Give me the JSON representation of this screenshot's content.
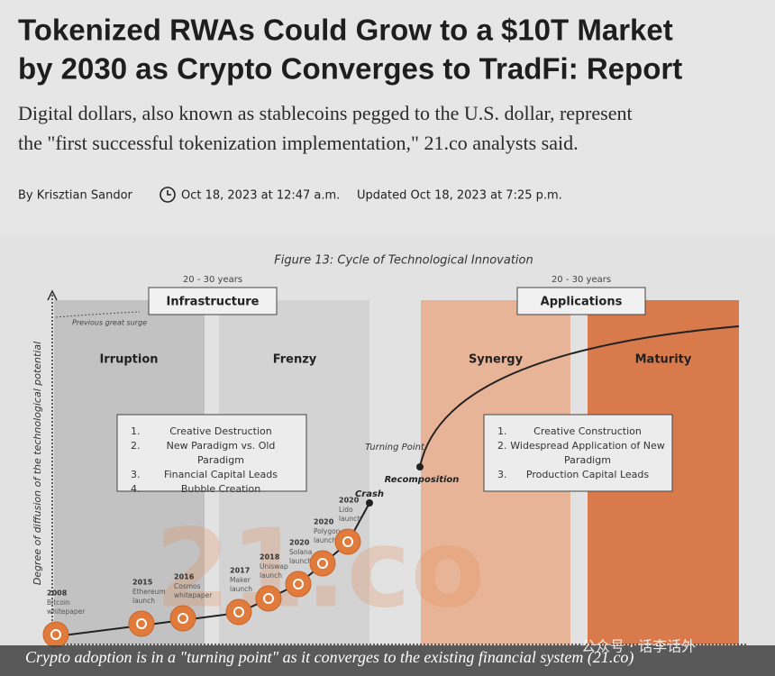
{
  "article": {
    "title_lines": [
      "Tokenized RWAs Could Grow to a $10T Market",
      "by 2030 as Crypto Converges to TradFi: Report"
    ],
    "subtitle_lines": [
      "Digital dollars, also known as stablecoins pegged to the U.S. dollar, represent",
      "the \"first successful tokenization implementation,\" 21.co analysts said."
    ],
    "byline": "By Krisztian Sandor",
    "published": "Oct 18, 2023 at 12:47 a.m.",
    "updated": "Updated Oct 18, 2023 at 7:25 p.m."
  },
  "figure": {
    "title": "Figure 13: Cycle of Technological Innovation",
    "y_axis_label": "Degree of diffusion of the technological potential",
    "previous_surge": "Previous great surge",
    "periods": [
      {
        "duration": "20 - 30 years",
        "name": "Infrastructure",
        "phases": [
          "Irruption",
          "Frenzy"
        ],
        "list": [
          [
            "1.",
            "Creative Destruction"
          ],
          [
            "2.",
            "New Paradigm vs. Old Paradigm"
          ],
          [
            "3.",
            "Financial Capital Leads"
          ],
          [
            "4.",
            "Bubble Creation"
          ]
        ]
      },
      {
        "duration": "20 - 30 years",
        "name": "Applications",
        "phases": [
          "Synergy",
          "Maturity"
        ],
        "list": [
          [
            "1.",
            "Creative Construction"
          ],
          [
            "2.",
            "Widespread Application of New Paradigm"
          ],
          [
            "3.",
            "Production Capital Leads"
          ]
        ]
      }
    ],
    "turning_point": "Turning Point",
    "recomposition": "Recomposition",
    "crash": "Crash",
    "milestones": [
      {
        "year": "2008",
        "label": [
          "Bitcoin",
          "whitepaper"
        ]
      },
      {
        "year": "2015",
        "label": [
          "Ethereum",
          "launch"
        ]
      },
      {
        "year": "2016",
        "label": [
          "Cosmos",
          "whitepaper"
        ]
      },
      {
        "year": "2017",
        "label": [
          "Maker",
          "launch"
        ]
      },
      {
        "year": "2018",
        "label": [
          "Uniswap",
          "launch"
        ]
      },
      {
        "year": "2020",
        "label": [
          "Solana",
          "launch"
        ]
      },
      {
        "year": "2020",
        "label": [
          "Polygon",
          "launch"
        ]
      },
      {
        "year": "2020",
        "label": [
          "Lido",
          "launch"
        ]
      }
    ],
    "watermark": "21.co",
    "caption": "Crypto adoption is in a \"turning point\" as it converges to the existing financial system (21.co)",
    "channel_mark": "公众号 · 话李话外"
  }
}
